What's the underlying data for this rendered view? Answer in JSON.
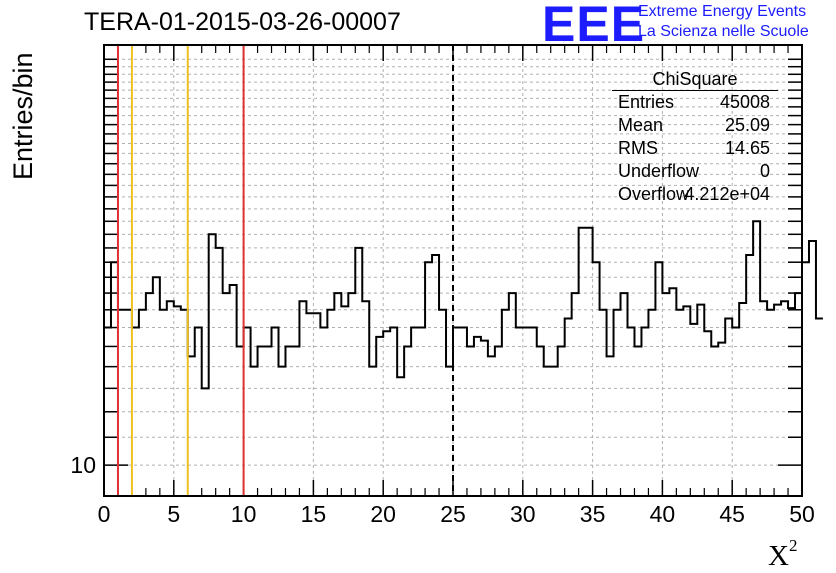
{
  "title": "TERA-01-2015-03-26-00007",
  "logo": {
    "mark": "EEE",
    "line1": "Extreme Energy Events",
    "line2": "La Scienza nelle Scuole",
    "color": "#1c1cff"
  },
  "stats_box": {
    "title": "ChiSquare",
    "rows": [
      {
        "key": "Entries",
        "value": "45008"
      },
      {
        "key": "Mean",
        "value": "25.09"
      },
      {
        "key": "RMS",
        "value": "14.65"
      },
      {
        "key": "Underflow",
        "value": "0"
      },
      {
        "key": "Overflow",
        "value": "4.212e+04"
      }
    ]
  },
  "chart_data": {
    "type": "histogram",
    "title": "TERA-01-2015-03-26-00007",
    "xlabel": "X",
    "xlabel_superscript": "2",
    "ylabel": "Entries/bin",
    "xlim": [
      0,
      50
    ],
    "ylim": [
      9,
      42
    ],
    "yscale": "log",
    "x_ticks": [
      0,
      5,
      10,
      15,
      20,
      25,
      30,
      35,
      40,
      45,
      50
    ],
    "y_tick_labels": [
      {
        "value": 10,
        "label": "10"
      }
    ],
    "grid": true,
    "bin_width": 0.5,
    "bin_contents": [
      16,
      20,
      17,
      17,
      16,
      17,
      18,
      19,
      17,
      17.5,
      17.2,
      17,
      14.5,
      16,
      13,
      22,
      21,
      18,
      18.5,
      15,
      16,
      14,
      15,
      15,
      16,
      14,
      15,
      15,
      17.5,
      16.8,
      16.8,
      16,
      17,
      18,
      17.2,
      18,
      21,
      17.5,
      14,
      15.5,
      15.8,
      16,
      13.5,
      15,
      16,
      16,
      20,
      20.5,
      17,
      14,
      16,
      16,
      15,
      15.5,
      15.3,
      14.5,
      15,
      17,
      18,
      16,
      16,
      16,
      15,
      14,
      14,
      15,
      16.5,
      18,
      22.5,
      22.5,
      20,
      17,
      14.5,
      17,
      18,
      16,
      15,
      16,
      17,
      20,
      18,
      18.3,
      17,
      17.2,
      16.2,
      17.3,
      15.8,
      15,
      15.2,
      16.5,
      16,
      17.4,
      20.5,
      23,
      17.5,
      17,
      17.3,
      17.5,
      17.1,
      18,
      20,
      21.5,
      16.5
    ],
    "vertical_lines": [
      {
        "x": 1,
        "color": "#e03030",
        "style": "solid"
      },
      {
        "x": 2,
        "color": "#f0c020",
        "style": "solid"
      },
      {
        "x": 6,
        "color": "#f0c020",
        "style": "solid"
      },
      {
        "x": 10,
        "color": "#e03030",
        "style": "solid"
      },
      {
        "x": 25,
        "color": "#000000",
        "style": "dashed"
      }
    ]
  }
}
